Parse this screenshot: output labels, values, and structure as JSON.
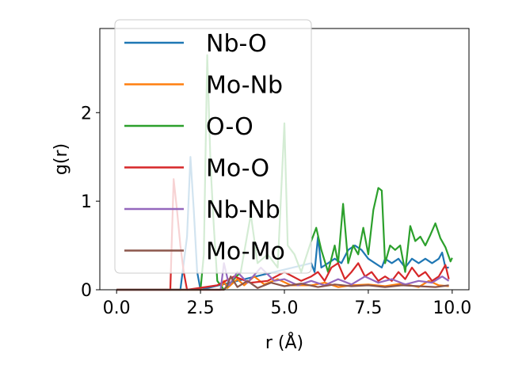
{
  "chart_data": {
    "type": "line",
    "xlabel": "r (Å)",
    "ylabel": "g(r)",
    "xlim": [
      -0.5,
      10.5
    ],
    "ylim": [
      0,
      2.95
    ],
    "xticks": [
      0.0,
      2.5,
      5.0,
      7.5,
      10.0
    ],
    "xtick_labels": [
      "0.0",
      "2.5",
      "5.0",
      "7.5",
      "10.0"
    ],
    "yticks": [
      0,
      1,
      2
    ],
    "ytick_labels": [
      "0",
      "1",
      "2"
    ],
    "grid": false,
    "legend_position": "upper-left",
    "series": [
      {
        "name": "Nb-O",
        "color": "#1f77b4",
        "points": [
          [
            0,
            0
          ],
          [
            1.9,
            0
          ],
          [
            2.0,
            0.3
          ],
          [
            2.1,
            0.6
          ],
          [
            2.2,
            1.5
          ],
          [
            2.3,
            0.9
          ],
          [
            2.4,
            0.2
          ],
          [
            2.5,
            0
          ],
          [
            5.8,
            0.3
          ],
          [
            5.9,
            0.2
          ],
          [
            6.0,
            0.6
          ],
          [
            6.1,
            0.25
          ],
          [
            6.3,
            0.3
          ],
          [
            6.5,
            0.35
          ],
          [
            6.7,
            0.3
          ],
          [
            6.9,
            0.45
          ],
          [
            7.1,
            0.5
          ],
          [
            7.3,
            0.45
          ],
          [
            7.5,
            0.35
          ],
          [
            7.7,
            0.3
          ],
          [
            7.9,
            0.25
          ],
          [
            8.0,
            0.35
          ],
          [
            8.2,
            0.3
          ],
          [
            8.4,
            0.35
          ],
          [
            8.6,
            0.25
          ],
          [
            8.8,
            0.35
          ],
          [
            9.0,
            0.3
          ],
          [
            9.2,
            0.35
          ],
          [
            9.4,
            0.3
          ],
          [
            9.6,
            0.35
          ],
          [
            9.7,
            0.42
          ],
          [
            9.8,
            0.25
          ],
          [
            9.9,
            0.25
          ]
        ]
      },
      {
        "name": "Mo-Nb",
        "color": "#ff7f0e",
        "points": [
          [
            0,
            0
          ],
          [
            3.1,
            0
          ],
          [
            3.2,
            0.1
          ],
          [
            3.3,
            0.02
          ],
          [
            3.6,
            0.12
          ],
          [
            3.8,
            0.05
          ],
          [
            4.1,
            0.15
          ],
          [
            4.4,
            0.06
          ],
          [
            4.8,
            0.12
          ],
          [
            5.2,
            0.05
          ],
          [
            5.8,
            0.05
          ],
          [
            6.2,
            0.08
          ],
          [
            6.6,
            0.03
          ],
          [
            7.0,
            0.05
          ],
          [
            7.5,
            0.06
          ],
          [
            8.0,
            0.04
          ],
          [
            8.5,
            0.07
          ],
          [
            9.0,
            0.03
          ],
          [
            9.3,
            0.1
          ],
          [
            9.6,
            0.05
          ],
          [
            9.9,
            0.04
          ]
        ]
      },
      {
        "name": "O-O",
        "color": "#2ca02c",
        "points": [
          [
            0,
            0
          ],
          [
            2.5,
            0
          ],
          [
            2.6,
            0.4
          ],
          [
            2.7,
            2.65
          ],
          [
            2.8,
            1.4
          ],
          [
            2.9,
            0.7
          ],
          [
            3.0,
            0.1
          ],
          [
            3.2,
            0
          ],
          [
            3.7,
            0.2
          ],
          [
            4.0,
            0.85
          ],
          [
            4.2,
            0.3
          ],
          [
            4.5,
            0.4
          ],
          [
            4.8,
            0.25
          ],
          [
            5.0,
            1.88
          ],
          [
            5.1,
            0.5
          ],
          [
            5.3,
            0.4
          ],
          [
            5.5,
            0.2
          ],
          [
            5.8,
            0.55
          ],
          [
            5.95,
            0.7
          ],
          [
            6.1,
            0.45
          ],
          [
            6.3,
            0.2
          ],
          [
            6.5,
            0.5
          ],
          [
            6.6,
            0.3
          ],
          [
            6.75,
            0.97
          ],
          [
            6.9,
            0.3
          ],
          [
            7.05,
            0.5
          ],
          [
            7.2,
            0.4
          ],
          [
            7.35,
            0.7
          ],
          [
            7.5,
            0.4
          ],
          [
            7.65,
            0.9
          ],
          [
            7.8,
            1.15
          ],
          [
            7.9,
            1.12
          ],
          [
            8.0,
            0.3
          ],
          [
            8.15,
            0.5
          ],
          [
            8.3,
            0.45
          ],
          [
            8.45,
            0.5
          ],
          [
            8.6,
            0.2
          ],
          [
            8.75,
            0.72
          ],
          [
            8.9,
            0.55
          ],
          [
            9.05,
            0.6
          ],
          [
            9.2,
            0.5
          ],
          [
            9.35,
            0.62
          ],
          [
            9.5,
            0.75
          ],
          [
            9.65,
            0.58
          ],
          [
            9.8,
            0.48
          ],
          [
            9.95,
            0.32
          ],
          [
            10.0,
            0.36
          ]
        ]
      },
      {
        "name": "Mo-O",
        "color": "#d62728",
        "points": [
          [
            0,
            0
          ],
          [
            1.6,
            0
          ],
          [
            1.7,
            1.25
          ],
          [
            1.8,
            0.9
          ],
          [
            1.9,
            0.5
          ],
          [
            2.0,
            0.2
          ],
          [
            2.1,
            0
          ],
          [
            3.0,
            0.05
          ],
          [
            3.5,
            0.15
          ],
          [
            4.0,
            0.08
          ],
          [
            4.5,
            0.1
          ],
          [
            5.0,
            0.2
          ],
          [
            5.5,
            0.1
          ],
          [
            5.8,
            0.15
          ],
          [
            6.0,
            0.2
          ],
          [
            6.2,
            0.1
          ],
          [
            6.4,
            0.25
          ],
          [
            6.6,
            0.3
          ],
          [
            6.8,
            0.12
          ],
          [
            7.0,
            0.2
          ],
          [
            7.2,
            0.3
          ],
          [
            7.4,
            0.15
          ],
          [
            7.6,
            0.2
          ],
          [
            7.8,
            0.1
          ],
          [
            8.0,
            0.15
          ],
          [
            8.2,
            0.1
          ],
          [
            8.4,
            0.2
          ],
          [
            8.6,
            0.12
          ],
          [
            8.8,
            0.25
          ],
          [
            9.0,
            0.15
          ],
          [
            9.2,
            0.2
          ],
          [
            9.4,
            0.1
          ],
          [
            9.6,
            0.15
          ],
          [
            9.8,
            0.28
          ],
          [
            9.9,
            0.12
          ]
        ]
      },
      {
        "name": "Nb-Nb",
        "color": "#9467bd",
        "points": [
          [
            0,
            0
          ],
          [
            3.1,
            0
          ],
          [
            3.2,
            0.3
          ],
          [
            3.35,
            0.05
          ],
          [
            3.6,
            0.2
          ],
          [
            3.9,
            0.08
          ],
          [
            4.3,
            0.25
          ],
          [
            4.7,
            0.1
          ],
          [
            5.0,
            0.12
          ],
          [
            5.4,
            0.05
          ],
          [
            5.8,
            0.1
          ],
          [
            6.2,
            0.05
          ],
          [
            6.6,
            0.12
          ],
          [
            7.0,
            0.06
          ],
          [
            7.4,
            0.15
          ],
          [
            7.8,
            0.08
          ],
          [
            8.2,
            0.12
          ],
          [
            8.6,
            0.06
          ],
          [
            9.0,
            0.1
          ],
          [
            9.4,
            0.08
          ],
          [
            9.7,
            0.15
          ],
          [
            9.9,
            0.1
          ]
        ]
      },
      {
        "name": "Mo-Mo",
        "color": "#8c564b",
        "points": [
          [
            0,
            0
          ],
          [
            3.2,
            0
          ],
          [
            3.3,
            0.05
          ],
          [
            3.4,
            0.15
          ],
          [
            3.6,
            0.03
          ],
          [
            3.9,
            0.1
          ],
          [
            4.2,
            0.02
          ],
          [
            4.6,
            0.08
          ],
          [
            5.0,
            0.04
          ],
          [
            5.5,
            0.07
          ],
          [
            6.0,
            0.03
          ],
          [
            6.5,
            0.06
          ],
          [
            7.0,
            0.04
          ],
          [
            7.5,
            0.05
          ],
          [
            8.0,
            0.03
          ],
          [
            8.5,
            0.05
          ],
          [
            9.0,
            0.04
          ],
          [
            9.5,
            0.03
          ],
          [
            9.9,
            0.05
          ]
        ]
      }
    ]
  }
}
